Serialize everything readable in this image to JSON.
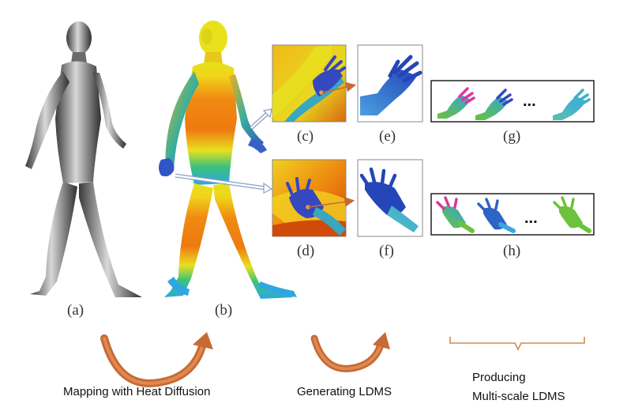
{
  "panel_labels": {
    "a": "(a)",
    "b": "(b)",
    "c": "(c)",
    "d": "(d)",
    "e": "(e)",
    "f": "(f)",
    "g": "(g)",
    "h": "(h)"
  },
  "ellipsis_top": "...",
  "ellipsis_bottom": "...",
  "captions": {
    "mapping": "Mapping with Heat Diffusion",
    "generating": "Generating LDMS",
    "producing_line1": "Producing",
    "producing_line2": "Multi-scale LDMS"
  },
  "colors": {
    "arrow": "#c86a35",
    "hand_blue": "#2f63c4",
    "hand_green": "#6cbf3a",
    "heat_orange": "#f28a12",
    "heat_yellow": "#f2e31c"
  }
}
